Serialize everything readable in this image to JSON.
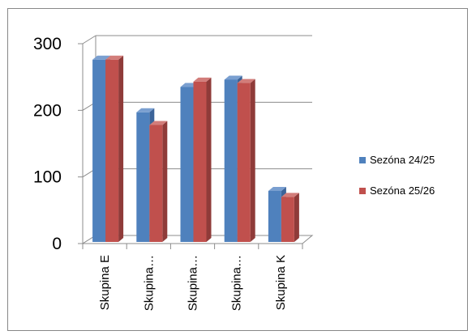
{
  "chart_data": {
    "type": "bar",
    "categories": [
      "Skupina E",
      "Skupina…",
      "Skupina…",
      "Skupina…",
      "Skupina K"
    ],
    "series": [
      {
        "name": "Sezóna 24/25",
        "values": [
          276,
          197,
          235,
          246,
          79
        ],
        "color": "#4f81bd",
        "side_color": "#3b6499",
        "top_color": "#7a9fd0"
      },
      {
        "name": "Sezóna 25/26",
        "values": [
          276,
          178,
          243,
          241,
          70
        ],
        "color": "#c0504d",
        "side_color": "#8f3b39",
        "top_color": "#d27d7a"
      }
    ],
    "yticks": [
      0,
      100,
      200,
      300
    ],
    "ylim": [
      0,
      300
    ],
    "grid": true,
    "legend_position": "right",
    "style": "3d-clustered-column"
  }
}
